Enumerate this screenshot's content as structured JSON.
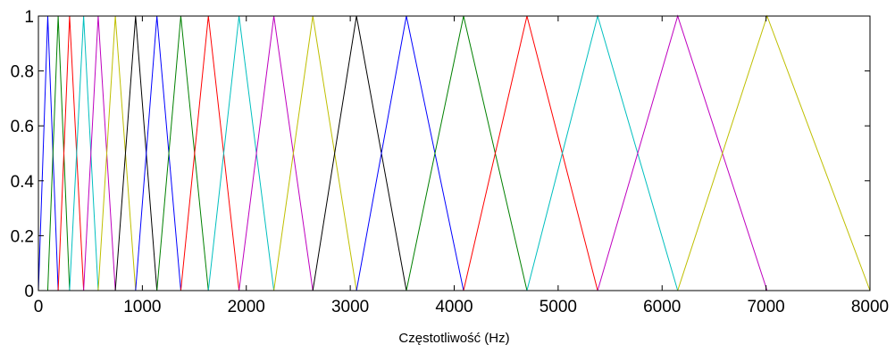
{
  "chart_data": {
    "type": "line",
    "title": "",
    "xlabel": "Częstotliwość (Hz)",
    "ylabel": "",
    "xlim": [
      0,
      8000
    ],
    "ylim": [
      0,
      1
    ],
    "grid": false,
    "legend": "none",
    "x_ticks": [
      0,
      1000,
      2000,
      3000,
      4000,
      5000,
      6000,
      7000,
      8000
    ],
    "x_tick_labels": [
      "0",
      "1000",
      "2000",
      "3000",
      "4000",
      "5000",
      "6000",
      "7000",
      "8000"
    ],
    "y_ticks": [
      0,
      0.2,
      0.4,
      0.6,
      0.8,
      1
    ],
    "y_tick_labels": [
      "0",
      "0.2",
      "0.4",
      "0.6",
      "0.8",
      "1"
    ],
    "colors": [
      "#0000ff",
      "#008000",
      "#ff0000",
      "#00bfbf",
      "#bf00bf",
      "#bfbf00",
      "#000000"
    ],
    "filter_edges_hz": [
      0,
      90,
      190,
      300,
      435,
      575,
      740,
      935,
      1140,
      1370,
      1635,
      1930,
      2265,
      2640,
      3060,
      3540,
      4090,
      4700,
      5380,
      6150,
      7010,
      8000
    ],
    "series": [
      {
        "x": [
          0,
          90,
          190
        ],
        "y": [
          0,
          1,
          0
        ]
      },
      {
        "x": [
          90,
          190,
          300
        ],
        "y": [
          0,
          1,
          0
        ]
      },
      {
        "x": [
          190,
          300,
          435
        ],
        "y": [
          0,
          1,
          0
        ]
      },
      {
        "x": [
          300,
          435,
          575
        ],
        "y": [
          0,
          1,
          0
        ]
      },
      {
        "x": [
          435,
          575,
          740
        ],
        "y": [
          0,
          1,
          0
        ]
      },
      {
        "x": [
          575,
          740,
          935
        ],
        "y": [
          0,
          1,
          0
        ]
      },
      {
        "x": [
          740,
          935,
          1140
        ],
        "y": [
          0,
          1,
          0
        ]
      },
      {
        "x": [
          935,
          1140,
          1370
        ],
        "y": [
          0,
          1,
          0
        ]
      },
      {
        "x": [
          1140,
          1370,
          1635
        ],
        "y": [
          0,
          1,
          0
        ]
      },
      {
        "x": [
          1370,
          1635,
          1930
        ],
        "y": [
          0,
          1,
          0
        ]
      },
      {
        "x": [
          1635,
          1930,
          2265
        ],
        "y": [
          0,
          1,
          0
        ]
      },
      {
        "x": [
          1930,
          2265,
          2640
        ],
        "y": [
          0,
          1,
          0
        ]
      },
      {
        "x": [
          2265,
          2640,
          3060
        ],
        "y": [
          0,
          1,
          0
        ]
      },
      {
        "x": [
          2640,
          3060,
          3540
        ],
        "y": [
          0,
          1,
          0
        ]
      },
      {
        "x": [
          3060,
          3540,
          4090
        ],
        "y": [
          0,
          1,
          0
        ]
      },
      {
        "x": [
          3540,
          4090,
          4700
        ],
        "y": [
          0,
          1,
          0
        ]
      },
      {
        "x": [
          4090,
          4700,
          5380
        ],
        "y": [
          0,
          1,
          0
        ]
      },
      {
        "x": [
          4700,
          5380,
          6150
        ],
        "y": [
          0,
          1,
          0
        ]
      },
      {
        "x": [
          5380,
          6150,
          7010
        ],
        "y": [
          0,
          1,
          0
        ]
      },
      {
        "x": [
          6150,
          7010,
          8000
        ],
        "y": [
          0,
          1,
          0
        ]
      }
    ]
  }
}
